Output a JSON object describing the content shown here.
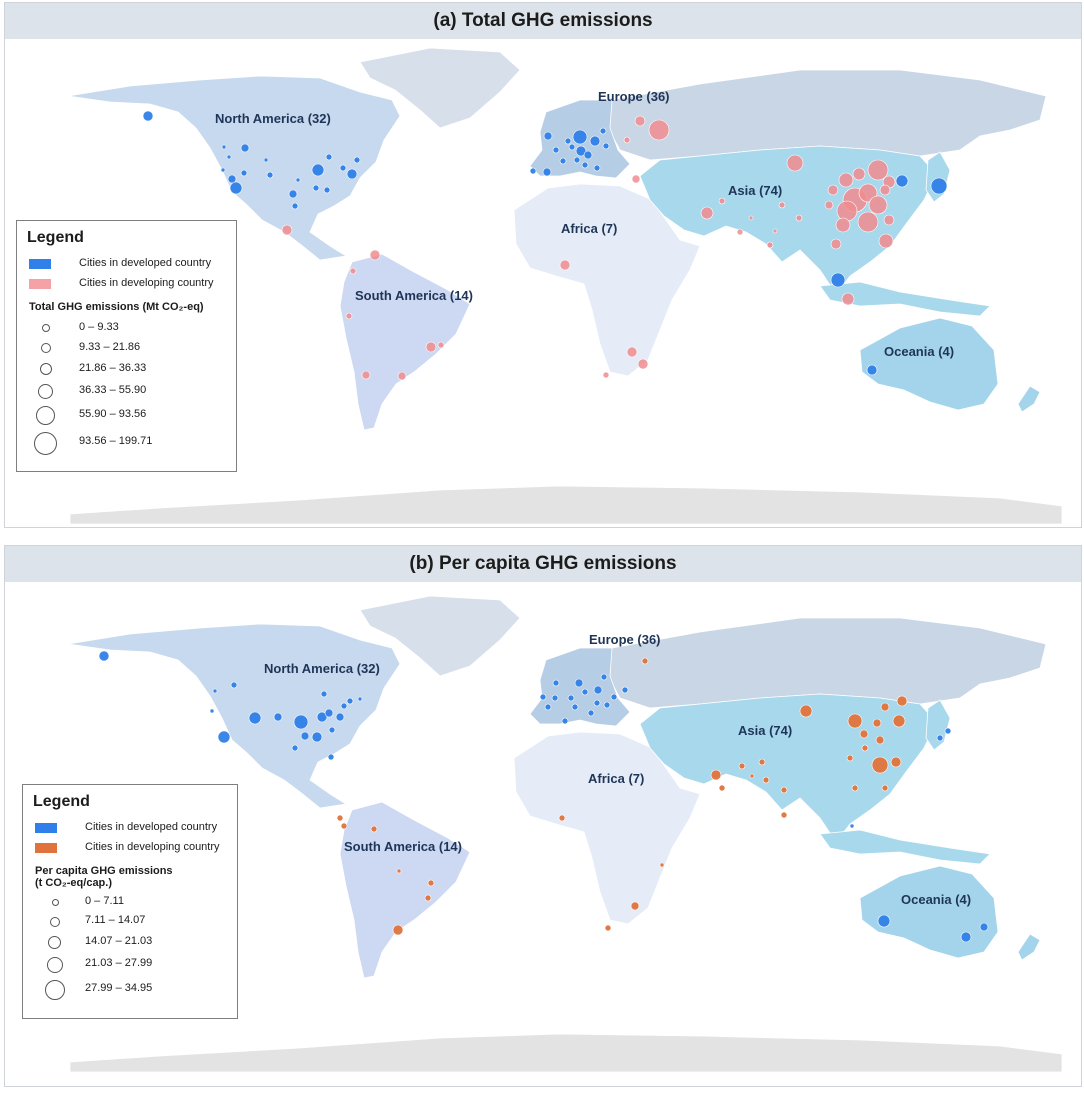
{
  "panel_a": {
    "title": "(a) Total GHG emissions",
    "regions": [
      {
        "key": "north_america",
        "label": "North America (32)"
      },
      {
        "key": "europe",
        "label": "Europe (36)"
      },
      {
        "key": "asia",
        "label": "Asia (74)"
      },
      {
        "key": "africa",
        "label": "Africa (7)"
      },
      {
        "key": "south_america",
        "label": "South America (14)"
      },
      {
        "key": "oceania",
        "label": "Oceania (4)"
      }
    ],
    "legend": {
      "title": "Legend",
      "developed_label": "Cities in developed country",
      "developing_label": "Cities in developing country",
      "size_title": "Total GHG emissions (Mt CO₂-eq)",
      "classes": [
        "0 – 9.33",
        "9.33 – 21.86",
        "21.86 – 36.33",
        "36.33 – 55.90",
        "55.90 – 93.56",
        "93.56 – 199.71"
      ]
    }
  },
  "panel_b": {
    "title": "(b) Per capita GHG emissions",
    "regions": [
      {
        "key": "north_america",
        "label": "North America (32)"
      },
      {
        "key": "europe",
        "label": "Europe (36)"
      },
      {
        "key": "asia",
        "label": "Asia (74)"
      },
      {
        "key": "africa",
        "label": "Africa (7)"
      },
      {
        "key": "south_america",
        "label": "South America (14)"
      },
      {
        "key": "oceania",
        "label": "Oceania (4)"
      }
    ],
    "legend": {
      "title": "Legend",
      "developed_label": "Cities in developed country",
      "developing_label": "Cities in developing country",
      "size_title_line1": "Per capita GHG emissions",
      "size_title_line2": "(t CO₂-eq/cap.)",
      "classes": [
        "0 – 7.11",
        "7.11 – 14.07",
        "14.07 – 21.03",
        "21.03 – 27.99",
        "27.99 – 34.95"
      ]
    }
  },
  "colors": {
    "developed": "#2f80e8",
    "developing_a": "#f08c8f",
    "developing_b": "#e0733b",
    "north_america_land": "#c7d9ee",
    "europe_land": "#b6cde6",
    "russia_land": "#c9d6e6",
    "asia_land": "#a8d8ec",
    "africa_land": "#e6ebf8",
    "south_america_land": "#cdd8f2",
    "oceania_land": "#a3d4ec",
    "greenland_land": "#d7e0ea",
    "antarctica_land": "#e3e3e3"
  },
  "cities": {
    "a_developed": [
      [
        148,
        116,
        5
      ],
      [
        224,
        147,
        2
      ],
      [
        229,
        157,
        2
      ],
      [
        223,
        170,
        2
      ],
      [
        232,
        179,
        4
      ],
      [
        236,
        188,
        6
      ],
      [
        244,
        173,
        3
      ],
      [
        245,
        148,
        4
      ],
      [
        270,
        175,
        3
      ],
      [
        298,
        180,
        2
      ],
      [
        293,
        194,
        4
      ],
      [
        295,
        206,
        3
      ],
      [
        318,
        170,
        6
      ],
      [
        327,
        190,
        3
      ],
      [
        329,
        157,
        3
      ],
      [
        343,
        168,
        3
      ],
      [
        352,
        174,
        5
      ],
      [
        357,
        160,
        3
      ],
      [
        316,
        188,
        3
      ],
      [
        266,
        160,
        2
      ],
      [
        548,
        136,
        4
      ],
      [
        556,
        150,
        3
      ],
      [
        568,
        141,
        3
      ],
      [
        572,
        147,
        3
      ],
      [
        577,
        160,
        3
      ],
      [
        580,
        137,
        7
      ],
      [
        581,
        151,
        5
      ],
      [
        585,
        165,
        3
      ],
      [
        595,
        141,
        5
      ],
      [
        603,
        131,
        3
      ],
      [
        597,
        168,
        3
      ],
      [
        588,
        155,
        4
      ],
      [
        547,
        172,
        4
      ],
      [
        533,
        171,
        3
      ],
      [
        563,
        161,
        3
      ],
      [
        606,
        146,
        3
      ],
      [
        902,
        181,
        6
      ],
      [
        939,
        186,
        8
      ],
      [
        838,
        280,
        7
      ],
      [
        872,
        370,
        5
      ]
    ],
    "a_developing": [
      [
        659,
        130,
        10
      ],
      [
        640,
        121,
        5
      ],
      [
        627,
        140,
        3
      ],
      [
        636,
        179,
        4
      ],
      [
        795,
        163,
        8
      ],
      [
        799,
        218,
        3
      ],
      [
        707,
        213,
        6
      ],
      [
        722,
        201,
        3
      ],
      [
        855,
        200,
        12
      ],
      [
        847,
        211,
        10
      ],
      [
        868,
        193,
        9
      ],
      [
        878,
        170,
        10
      ],
      [
        846,
        180,
        7
      ],
      [
        889,
        182,
        6
      ],
      [
        868,
        222,
        10
      ],
      [
        843,
        225,
        7
      ],
      [
        859,
        174,
        6
      ],
      [
        829,
        205,
        4
      ],
      [
        878,
        205,
        9
      ],
      [
        885,
        190,
        5
      ],
      [
        889,
        220,
        5
      ],
      [
        833,
        190,
        5
      ],
      [
        886,
        241,
        7
      ],
      [
        836,
        244,
        5
      ],
      [
        770,
        245,
        3
      ],
      [
        782,
        205,
        3
      ],
      [
        751,
        218,
        2
      ],
      [
        740,
        232,
        3
      ],
      [
        775,
        231,
        2
      ],
      [
        848,
        299,
        6
      ],
      [
        287,
        230,
        5
      ],
      [
        375,
        255,
        5
      ],
      [
        353,
        271,
        3
      ],
      [
        349,
        316,
        3
      ],
      [
        431,
        347,
        5
      ],
      [
        441,
        345,
        3
      ],
      [
        402,
        376,
        4
      ],
      [
        366,
        375,
        4
      ],
      [
        565,
        265,
        5
      ],
      [
        632,
        352,
        5
      ],
      [
        643,
        364,
        5
      ],
      [
        606,
        375,
        3
      ]
    ],
    "b_developed": [
      [
        104,
        656,
        5
      ],
      [
        234,
        685,
        3
      ],
      [
        215,
        691,
        2
      ],
      [
        212,
        711,
        2
      ],
      [
        224,
        737,
        6
      ],
      [
        255,
        718,
        6
      ],
      [
        278,
        717,
        4
      ],
      [
        301,
        722,
        7
      ],
      [
        305,
        736,
        4
      ],
      [
        322,
        717,
        5
      ],
      [
        317,
        737,
        5
      ],
      [
        329,
        713,
        4
      ],
      [
        340,
        717,
        4
      ],
      [
        344,
        706,
        3
      ],
      [
        332,
        730,
        3
      ],
      [
        295,
        748,
        3
      ],
      [
        331,
        757,
        3
      ],
      [
        324,
        694,
        3
      ],
      [
        350,
        701,
        3
      ],
      [
        360,
        699,
        2
      ],
      [
        579,
        683,
        4
      ],
      [
        585,
        692,
        3
      ],
      [
        571,
        698,
        3
      ],
      [
        575,
        707,
        3
      ],
      [
        598,
        690,
        4
      ],
      [
        607,
        705,
        3
      ],
      [
        591,
        713,
        3
      ],
      [
        597,
        703,
        3
      ],
      [
        555,
        698,
        3
      ],
      [
        565,
        721,
        3
      ],
      [
        543,
        697,
        3
      ],
      [
        556,
        683,
        3
      ],
      [
        548,
        707,
        3
      ],
      [
        614,
        697,
        3
      ],
      [
        625,
        690,
        3
      ],
      [
        604,
        677,
        3
      ],
      [
        948,
        731,
        3
      ],
      [
        940,
        738,
        3
      ],
      [
        852,
        826,
        2
      ],
      [
        884,
        921,
        6
      ],
      [
        966,
        937,
        5
      ],
      [
        984,
        927,
        4
      ]
    ],
    "b_developing": [
      [
        645,
        661,
        3
      ],
      [
        806,
        711,
        6
      ],
      [
        855,
        721,
        7
      ],
      [
        877,
        723,
        4
      ],
      [
        885,
        707,
        4
      ],
      [
        899,
        721,
        6
      ],
      [
        902,
        701,
        5
      ],
      [
        880,
        765,
        8
      ],
      [
        896,
        762,
        5
      ],
      [
        865,
        748,
        3
      ],
      [
        880,
        740,
        4
      ],
      [
        864,
        734,
        4
      ],
      [
        850,
        758,
        3
      ],
      [
        855,
        788,
        3
      ],
      [
        885,
        788,
        3
      ],
      [
        716,
        775,
        5
      ],
      [
        722,
        788,
        3
      ],
      [
        742,
        766,
        3
      ],
      [
        762,
        762,
        3
      ],
      [
        766,
        780,
        3
      ],
      [
        752,
        776,
        2
      ],
      [
        784,
        790,
        3
      ],
      [
        784,
        815,
        3
      ],
      [
        340,
        818,
        3
      ],
      [
        344,
        826,
        3
      ],
      [
        374,
        829,
        3
      ],
      [
        398,
        930,
        5
      ],
      [
        431,
        883,
        3
      ],
      [
        428,
        898,
        3
      ],
      [
        399,
        871,
        2
      ],
      [
        562,
        818,
        3
      ],
      [
        635,
        906,
        4
      ],
      [
        608,
        928,
        3
      ],
      [
        662,
        865,
        2
      ]
    ]
  }
}
